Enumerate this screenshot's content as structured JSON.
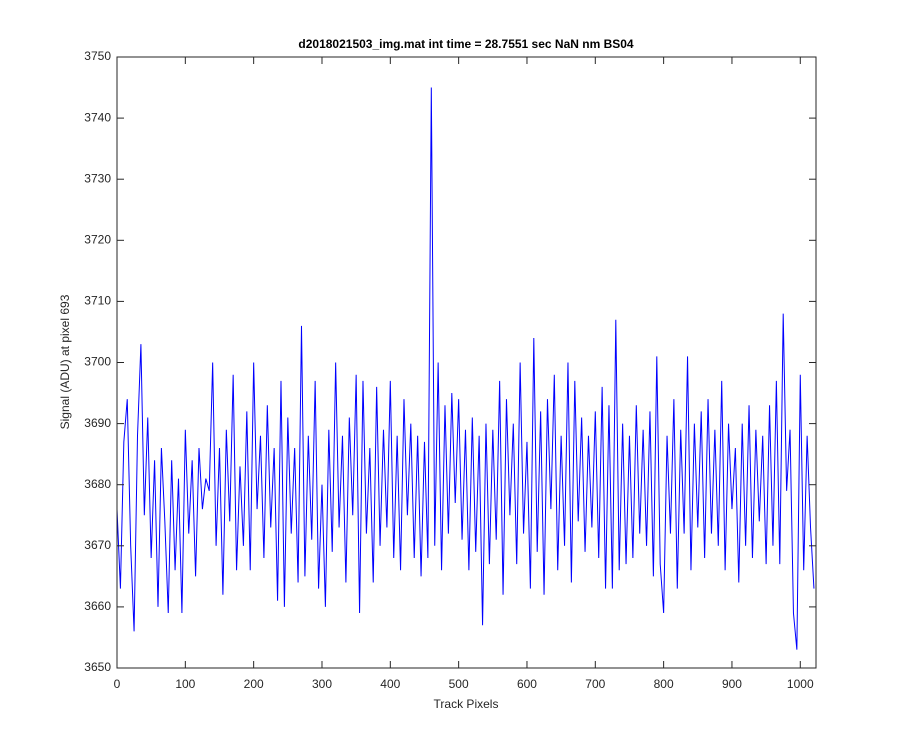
{
  "chart_data": {
    "type": "line",
    "title": "d2018021503_img.mat int time = 28.7551 sec  NaN nm BS04",
    "xlabel": "Track Pixels",
    "ylabel": "Signal (ADU) at pixel 693",
    "xlim": [
      0,
      1023
    ],
    "ylim": [
      3650,
      3750
    ],
    "xticks": [
      0,
      100,
      200,
      300,
      400,
      500,
      600,
      700,
      800,
      900,
      1000
    ],
    "yticks": [
      3650,
      3660,
      3670,
      3680,
      3690,
      3700,
      3710,
      3720,
      3730,
      3740,
      3750
    ],
    "color": "#0000ff",
    "x": [
      0,
      5,
      10,
      15,
      20,
      25,
      30,
      35,
      40,
      45,
      50,
      55,
      60,
      65,
      70,
      75,
      80,
      85,
      90,
      95,
      100,
      105,
      110,
      115,
      120,
      125,
      130,
      135,
      140,
      145,
      150,
      155,
      160,
      165,
      170,
      175,
      180,
      185,
      190,
      195,
      200,
      205,
      210,
      215,
      220,
      225,
      230,
      235,
      240,
      245,
      250,
      255,
      260,
      265,
      270,
      275,
      280,
      285,
      290,
      295,
      300,
      305,
      310,
      315,
      320,
      325,
      330,
      335,
      340,
      345,
      350,
      355,
      360,
      365,
      370,
      375,
      380,
      385,
      390,
      395,
      400,
      405,
      410,
      415,
      420,
      425,
      430,
      435,
      440,
      445,
      450,
      455,
      460,
      465,
      470,
      475,
      480,
      485,
      490,
      495,
      500,
      505,
      510,
      515,
      520,
      525,
      530,
      535,
      540,
      545,
      550,
      555,
      560,
      565,
      570,
      575,
      580,
      585,
      590,
      595,
      600,
      605,
      610,
      615,
      620,
      625,
      630,
      635,
      640,
      645,
      650,
      655,
      660,
      665,
      670,
      675,
      680,
      685,
      690,
      695,
      700,
      705,
      710,
      715,
      720,
      725,
      730,
      735,
      740,
      745,
      750,
      755,
      760,
      765,
      770,
      775,
      780,
      785,
      790,
      795,
      800,
      805,
      810,
      815,
      820,
      825,
      830,
      835,
      840,
      845,
      850,
      855,
      860,
      865,
      870,
      875,
      880,
      885,
      890,
      895,
      900,
      905,
      910,
      915,
      920,
      925,
      930,
      935,
      940,
      945,
      950,
      955,
      960,
      965,
      970,
      975,
      980,
      985,
      990,
      995,
      1000,
      1005,
      1010,
      1015,
      1020
    ],
    "values": [
      3676,
      3663,
      3687,
      3694,
      3670,
      3656,
      3688,
      3703,
      3675,
      3691,
      3668,
      3684,
      3660,
      3686,
      3674,
      3659,
      3684,
      3666,
      3681,
      3659,
      3689,
      3672,
      3684,
      3665,
      3686,
      3676,
      3681,
      3679,
      3700,
      3670,
      3686,
      3662,
      3689,
      3674,
      3698,
      3666,
      3683,
      3670,
      3692,
      3666,
      3700,
      3676,
      3688,
      3668,
      3693,
      3673,
      3686,
      3661,
      3697,
      3660,
      3691,
      3672,
      3686,
      3664,
      3706,
      3665,
      3688,
      3671,
      3697,
      3663,
      3680,
      3660,
      3689,
      3669,
      3700,
      3673,
      3688,
      3664,
      3691,
      3675,
      3698,
      3659,
      3697,
      3672,
      3686,
      3664,
      3696,
      3670,
      3689,
      3673,
      3697,
      3668,
      3688,
      3666,
      3694,
      3675,
      3690,
      3668,
      3688,
      3665,
      3687,
      3668,
      3745,
      3670,
      3700,
      3666,
      3693,
      3672,
      3695,
      3677,
      3694,
      3671,
      3689,
      3666,
      3691,
      3669,
      3688,
      3657,
      3690,
      3667,
      3689,
      3671,
      3697,
      3662,
      3694,
      3675,
      3690,
      3667,
      3700,
      3672,
      3687,
      3663,
      3704,
      3669,
      3692,
      3662,
      3694,
      3676,
      3698,
      3666,
      3688,
      3670,
      3700,
      3664,
      3697,
      3674,
      3691,
      3669,
      3688,
      3673,
      3692,
      3668,
      3696,
      3663,
      3693,
      3663,
      3707,
      3666,
      3690,
      3667,
      3688,
      3668,
      3693,
      3672,
      3689,
      3670,
      3692,
      3665,
      3701,
      3667,
      3659,
      3688,
      3672,
      3694,
      3663,
      3689,
      3672,
      3701,
      3666,
      3690,
      3673,
      3692,
      3668,
      3694,
      3672,
      3689,
      3670,
      3697,
      3666,
      3690,
      3676,
      3686,
      3664,
      3690,
      3670,
      3693,
      3668,
      3689,
      3674,
      3688,
      3667,
      3693,
      3670,
      3697,
      3667,
      3708,
      3679,
      3689,
      3659,
      3653,
      3698,
      3666,
      3688,
      3673,
      3663
    ]
  }
}
